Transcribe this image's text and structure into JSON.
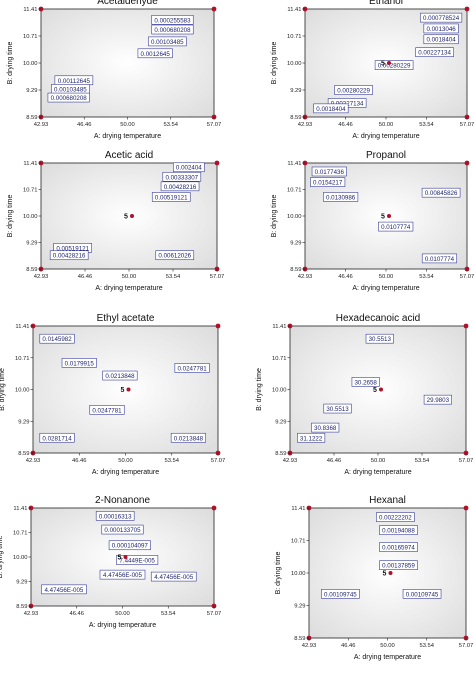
{
  "figure": {
    "x_axis_title": "A: drying temperature",
    "y_axis_title": "B: drying time",
    "x_ticks": [
      "42.93",
      "46.46",
      "50.00",
      "53.54",
      "57.07"
    ],
    "y_ticks": [
      "8.59",
      "9.29",
      "10.00",
      "10.71",
      "11.41"
    ],
    "center_point_label": "5",
    "colors": {
      "contour": "#3a3f9a",
      "label_border": "#3a3f9a",
      "axis": "#222222",
      "design_point": "#b0102a",
      "plot_bg": "#f7f7f7"
    }
  },
  "chart_data": [
    {
      "type": "contour",
      "title": "Acetaldehyde",
      "xlabel": "A: drying temperature",
      "ylabel": "B: drying time",
      "xlim": [
        42.93,
        57.07
      ],
      "ylim": [
        8.59,
        11.41
      ],
      "contour_labels": [
        "0.000255583",
        "0.000680208",
        "0.00103485",
        "0.0012645",
        "0.00112645",
        "0.00103485",
        "0.000680208"
      ],
      "center_point": false
    },
    {
      "type": "contour",
      "title": "Ethanol",
      "xlabel": "A: drying temperature",
      "ylabel": "B: drying time",
      "xlim": [
        42.93,
        57.07
      ],
      "ylim": [
        8.59,
        11.41
      ],
      "contour_labels": [
        "0.000778524",
        "0.0013046",
        "0.0018404",
        "0.00227134",
        "0.00280229",
        "0.00280229",
        "0.00227134",
        "0.0018404"
      ],
      "center_point": true
    },
    {
      "type": "contour",
      "title": "Acetic acid",
      "xlabel": "A: drying temperature",
      "ylabel": "B: drying time",
      "xlim": [
        42.93,
        57.07
      ],
      "ylim": [
        8.59,
        11.41
      ],
      "contour_labels": [
        "0.002404",
        "0.00333307",
        "0.00428216",
        "0.00519121",
        "0.00519121",
        "0.00428216",
        "0.00612026"
      ],
      "center_point": true
    },
    {
      "type": "contour",
      "title": "Propanol",
      "xlabel": "A: drying temperature",
      "ylabel": "B: drying time",
      "xlim": [
        42.93,
        57.07
      ],
      "ylim": [
        8.59,
        11.41
      ],
      "contour_labels": [
        "0.0177436",
        "0.0154217",
        "0.0130986",
        "0.00845826",
        "0.0107774",
        "0.0107774"
      ],
      "center_point": true
    },
    {
      "type": "contour",
      "title": "Ethyl acetate",
      "xlabel": "A: drying temperature",
      "ylabel": "B: drying time",
      "xlim": [
        42.93,
        57.07
      ],
      "ylim": [
        8.59,
        11.41
      ],
      "contour_labels": [
        "0.0145982",
        "0.0179915",
        "0.0213848",
        "0.0247781",
        "0.0247781",
        "0.0281714",
        "0.0213848"
      ],
      "center_point": true
    },
    {
      "type": "contour",
      "title": "Hexadecanoic acid",
      "xlabel": "A: drying temperature",
      "ylabel": "B: drying time",
      "xlim": [
        42.93,
        57.07
      ],
      "ylim": [
        8.59,
        11.41
      ],
      "contour_labels": [
        "30.5513",
        "30.2658",
        "29.9803",
        "30.5513",
        "30.8368",
        "31.1222"
      ],
      "center_point": true
    },
    {
      "type": "contour",
      "title": "2-Nonanone",
      "xlabel": "A: drying temperature",
      "ylabel": "B: drying time",
      "xlim": [
        42.93,
        57.07
      ],
      "ylim": [
        8.59,
        11.41
      ],
      "contour_labels": [
        "0.00016313",
        "0.000133705",
        "0.000104097",
        "7.4449E-005",
        "4.47456E-005",
        "4.47456E-005",
        "4.47456E-005"
      ],
      "center_point": true
    },
    {
      "type": "contour",
      "title": "Hexanal",
      "xlabel": "A: drying temperature",
      "ylabel": "B: drying time",
      "xlim": [
        42.93,
        57.07
      ],
      "ylim": [
        8.59,
        11.41
      ],
      "contour_labels": [
        "0.00222202",
        "0.00194088",
        "0.00165974",
        "0.00137859",
        "0.00109745",
        "0.00109745"
      ],
      "center_point": true
    }
  ]
}
